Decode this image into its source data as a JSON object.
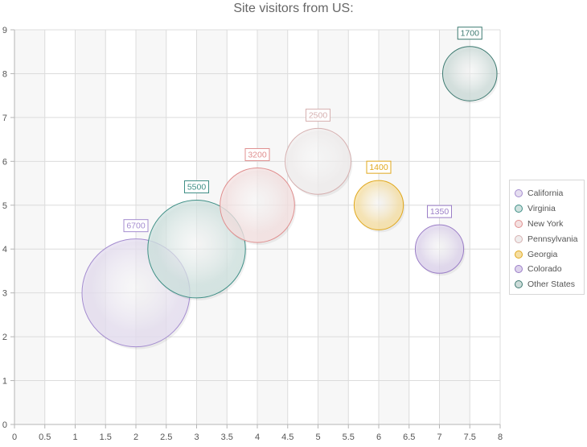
{
  "chart_data": {
    "type": "bubble",
    "title": "Site visitors from US:",
    "xlim": [
      0,
      8
    ],
    "ylim": [
      0,
      9
    ],
    "x_ticks": [
      "0",
      "0.5",
      "1",
      "1.5",
      "2",
      "2.5",
      "3",
      "3.5",
      "4",
      "4.5",
      "5",
      "5.5",
      "6",
      "6.5",
      "7",
      "7.5",
      "8"
    ],
    "y_ticks": [
      "0",
      "1",
      "2",
      "3",
      "4",
      "5",
      "6",
      "7",
      "8",
      "9"
    ],
    "grid": true,
    "legend_position": "right",
    "series": [
      {
        "name": "California",
        "x": 2,
        "y": 3,
        "value": 6700,
        "label": "6700",
        "color": "#a48ccf",
        "fill": "#e5def0"
      },
      {
        "name": "Virginia",
        "x": 3,
        "y": 4,
        "value": 5500,
        "label": "5500",
        "color": "#3f8f86",
        "fill": "#cfe2df"
      },
      {
        "name": "New York",
        "x": 4,
        "y": 5,
        "value": 3200,
        "label": "3200",
        "color": "#e08f8f",
        "fill": "#f4e1e1"
      },
      {
        "name": "Pennsylvania",
        "x": 5,
        "y": 6,
        "value": 2500,
        "label": "2500",
        "color": "#d6b0b0",
        "fill": "#f0eded"
      },
      {
        "name": "Georgia",
        "x": 6,
        "y": 5,
        "value": 1400,
        "label": "1400",
        "color": "#e0a81e",
        "fill": "#f6dfa3"
      },
      {
        "name": "Colorado",
        "x": 7,
        "y": 4,
        "value": 1350,
        "label": "1350",
        "color": "#9b7ec7",
        "fill": "#ddd3ec"
      },
      {
        "name": "Other States",
        "x": 7.5,
        "y": 8,
        "value": 1700,
        "label": "1700",
        "color": "#3d7a71",
        "fill": "#cddcd9"
      }
    ]
  }
}
